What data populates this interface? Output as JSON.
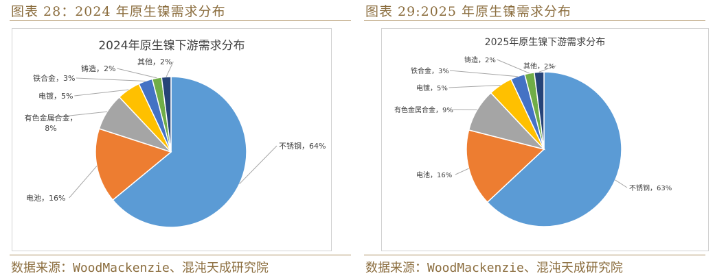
{
  "left": {
    "fig_title": "图表 28：2024 年原生镍需求分布",
    "source": "数据来源：WoodMackenzie、混沌天成研究院"
  },
  "right": {
    "fig_title": "图表 29:2025 年原生镍需求分布",
    "source": "数据来源：WoodMackenzie、混沌天成研究院"
  },
  "colors": {
    "不锈钢": "#5B9BD5",
    "电池": "#ED7D31",
    "有色金属合金": "#A5A5A5",
    "电镀": "#FFC000",
    "铁合金": "#4472C4",
    "铸造": "#70AD47",
    "其他": "#264478"
  },
  "chart_data": [
    {
      "type": "pie",
      "title": "2024年原生镍下游需求分布",
      "slices": [
        {
          "name": "不锈钢",
          "value": 64,
          "label": "不锈钢，64%"
        },
        {
          "name": "电池",
          "value": 16,
          "label": "电池，16%"
        },
        {
          "name": "有色金属合金",
          "value": 8,
          "label": "有色金属合金，8%"
        },
        {
          "name": "电镀",
          "value": 5,
          "label": "电镀，5%"
        },
        {
          "name": "铁合金",
          "value": 3,
          "label": "铁合金，3%"
        },
        {
          "name": "铸造",
          "value": 2,
          "label": "铸造，2%"
        },
        {
          "name": "其他",
          "value": 2,
          "label": "其他，2%"
        }
      ]
    },
    {
      "type": "pie",
      "title": "2025年原生镍下游需求分布",
      "slices": [
        {
          "name": "不锈钢",
          "value": 63,
          "label": "不锈钢，63%"
        },
        {
          "name": "电池",
          "value": 16,
          "label": "电池，16%"
        },
        {
          "name": "有色金属合金",
          "value": 9,
          "label": "有色金属合金，9%"
        },
        {
          "name": "电镀",
          "value": 5,
          "label": "电镀，5%"
        },
        {
          "name": "铁合金",
          "value": 3,
          "label": "铁合金，3%"
        },
        {
          "name": "铸造",
          "value": 2,
          "label": "铸造，2%"
        },
        {
          "name": "其他",
          "value": 2,
          "label": "其他，2%"
        }
      ]
    }
  ]
}
